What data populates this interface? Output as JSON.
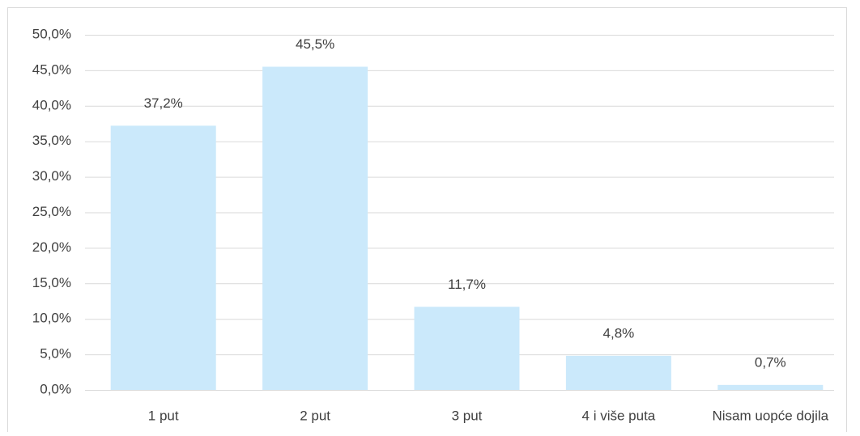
{
  "chart_data": {
    "type": "bar",
    "categories": [
      "1 put",
      "2 put",
      "3 put",
      "4 i više puta",
      "Nisam uopće dojila"
    ],
    "values": [
      37.2,
      45.5,
      11.7,
      4.8,
      0.7
    ],
    "value_labels": [
      "37,2%",
      "45,5%",
      "11,7%",
      "4,8%",
      "0,7%"
    ],
    "color": "#cbe9fb",
    "ylim": [
      0,
      50
    ],
    "yticks": [
      {
        "value": 0,
        "label": "0,0%"
      },
      {
        "value": 5,
        "label": "5,0%"
      },
      {
        "value": 10,
        "label": "10,0%"
      },
      {
        "value": 15,
        "label": "15,0%"
      },
      {
        "value": 20,
        "label": "20,0%"
      },
      {
        "value": 25,
        "label": "25,0%"
      },
      {
        "value": 30,
        "label": "30,0%"
      },
      {
        "value": 35,
        "label": "35,0%"
      },
      {
        "value": 40,
        "label": "40,0%"
      },
      {
        "value": 45,
        "label": "45,0%"
      },
      {
        "value": 50,
        "label": "50,0%"
      }
    ],
    "grid": true
  }
}
